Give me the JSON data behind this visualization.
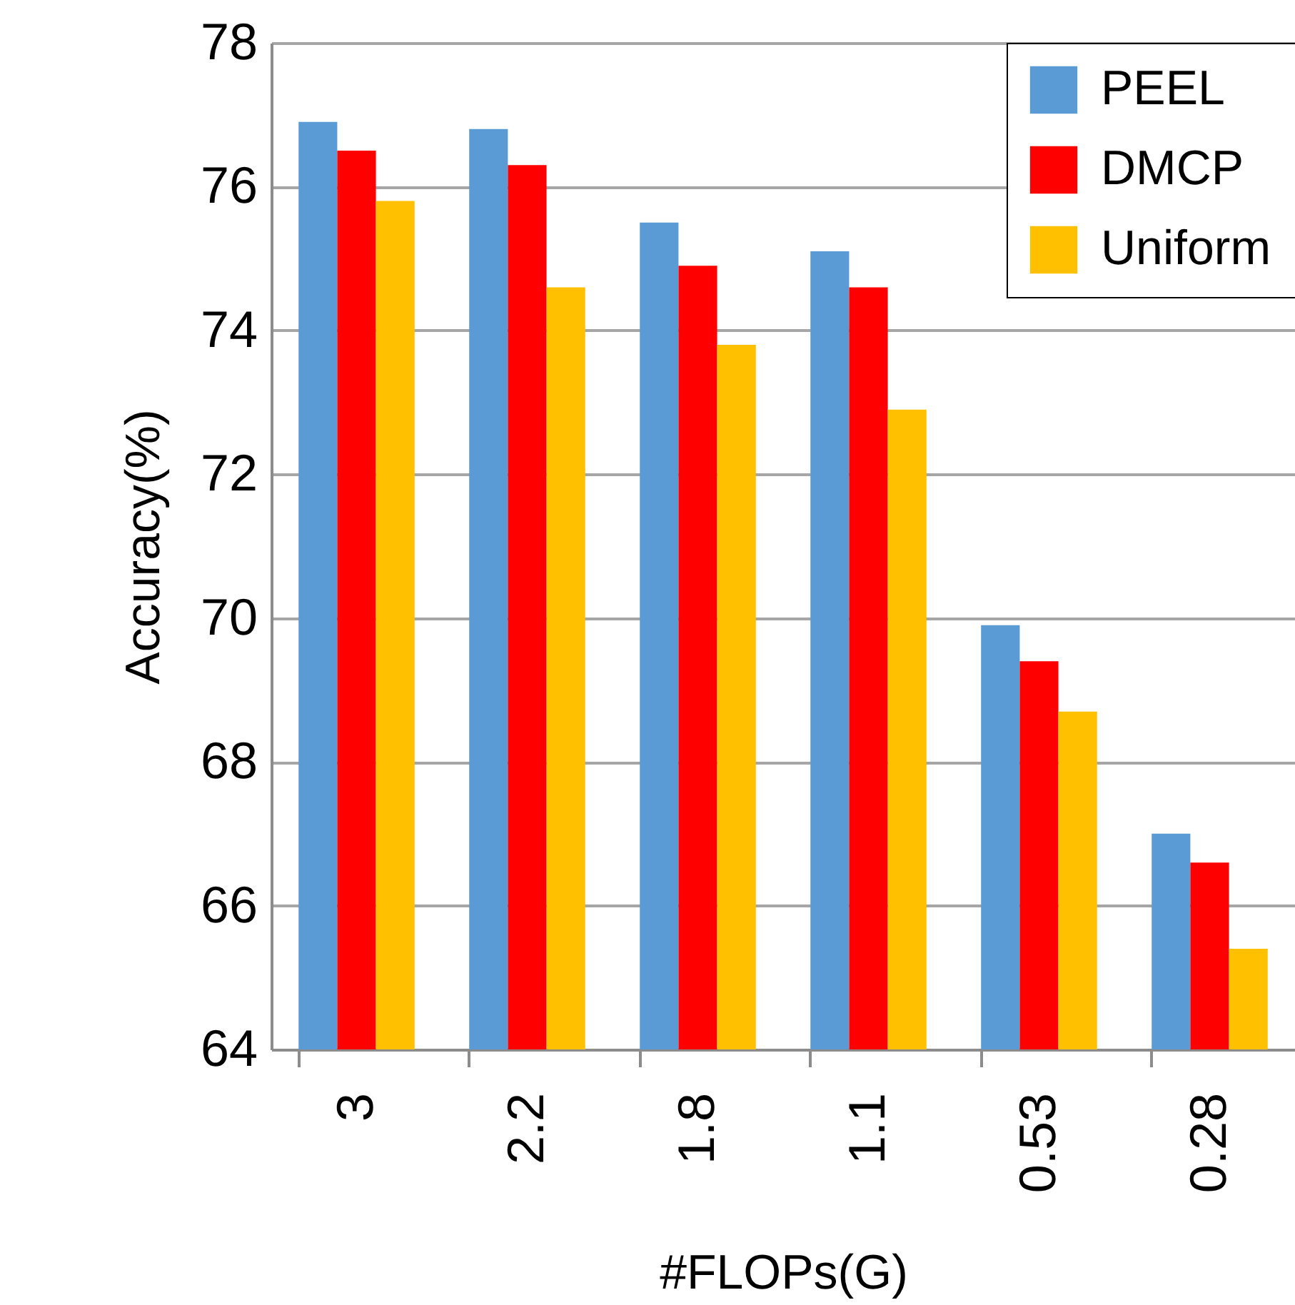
{
  "chart_data": {
    "type": "bar",
    "xlabel": "#FLOPs(G)",
    "ylabel": "Accuracy(%)",
    "categories": [
      "3",
      "2.2",
      "1.8",
      "1.1",
      "0.53",
      "0.28"
    ],
    "series": [
      {
        "name": "PEEL",
        "color": "#5b9bd5",
        "values": [
          76.9,
          76.8,
          75.5,
          75.1,
          69.9,
          67.0
        ]
      },
      {
        "name": "DMCP",
        "color": "#ff0000",
        "values": [
          76.5,
          76.3,
          74.9,
          74.6,
          69.4,
          66.6
        ]
      },
      {
        "name": "Uniform",
        "color": "#ffc000",
        "values": [
          75.8,
          74.6,
          73.8,
          72.9,
          68.7,
          65.4
        ]
      }
    ],
    "ylim": [
      64,
      78
    ],
    "yticks": [
      64,
      66,
      68,
      70,
      72,
      74,
      76,
      78
    ],
    "grid": "y",
    "legend": "top right"
  }
}
